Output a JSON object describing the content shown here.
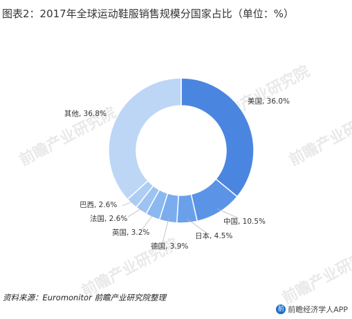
{
  "title": "图表2：2017年全球运动鞋服销售规模分国家占比（单位：%）",
  "source": "资料来源：Euromonitor 前瞻产业研究院整理",
  "brand": "前瞻经济学人APP",
  "brand_icon": "前",
  "watermark_text": "前瞻产业研究院",
  "chart_data": {
    "type": "pie",
    "donut": true,
    "categories": [
      "美国",
      "中国",
      "日本",
      "德国",
      "英国",
      "法国",
      "巴西",
      "其他"
    ],
    "values": [
      36.0,
      10.5,
      4.5,
      3.9,
      3.2,
      2.6,
      2.6,
      36.8
    ],
    "labels": [
      "美国, 36.0%",
      "中国, 10.5%",
      "日本, 4.5%",
      "德国, 3.9%",
      "英国, 3.2%",
      "法国, 2.6%",
      "巴西, 2.6%",
      "其他, 36.8%"
    ],
    "colors": [
      "#4a86e0",
      "#5b94e6",
      "#6aa0ea",
      "#7aacee",
      "#8bb8f0",
      "#9dc3f2",
      "#aecdf4",
      "#bdd6f6"
    ],
    "legend": "none"
  }
}
